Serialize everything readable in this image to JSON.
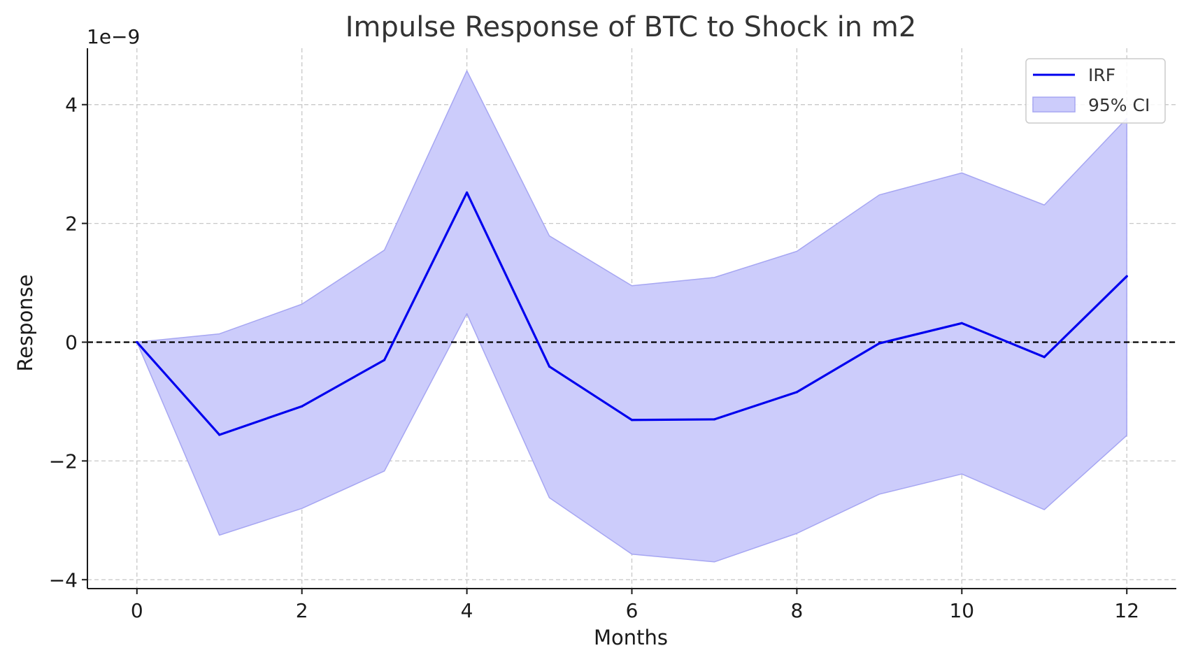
{
  "chart_data": {
    "type": "line",
    "title": "Impulse Response of BTC to Shock in m2",
    "xlabel": "Months",
    "ylabel": "Response",
    "y_offset_label": "1e−9",
    "x": [
      0,
      1,
      2,
      3,
      4,
      5,
      6,
      7,
      8,
      9,
      10,
      11,
      12
    ],
    "series": [
      {
        "name": "IRF",
        "values": [
          0.0,
          -1.56,
          -1.08,
          -0.3,
          2.52,
          -0.41,
          -1.31,
          -1.3,
          -0.84,
          -0.02,
          0.32,
          -0.25,
          1.11
        ],
        "color": "#0000ee"
      }
    ],
    "confidence_band": {
      "name": "95% CI",
      "lower": [
        0.0,
        -3.25,
        -2.8,
        -2.17,
        0.48,
        -2.62,
        -3.57,
        -3.7,
        -3.22,
        -2.56,
        -2.22,
        -2.82,
        -1.57
      ],
      "upper": [
        0.0,
        0.14,
        0.64,
        1.55,
        4.57,
        1.79,
        0.95,
        1.09,
        1.53,
        2.48,
        2.85,
        2.31,
        3.77
      ],
      "fill_color": "#ccccfb",
      "edge_color": "#a6a6f2"
    },
    "reference_line": {
      "y": 0,
      "color": "#000000",
      "style": "dashed"
    },
    "xlim": [
      -0.6,
      12.6
    ],
    "ylim": [
      -4.15,
      4.95
    ],
    "x_ticks": [
      0,
      2,
      4,
      6,
      8,
      10,
      12
    ],
    "x_tick_labels": [
      "0",
      "2",
      "4",
      "6",
      "8",
      "10",
      "12"
    ],
    "y_ticks": [
      -4,
      -2,
      0,
      2,
      4
    ],
    "y_tick_labels": [
      "−4",
      "−2",
      "0",
      "2",
      "4"
    ],
    "grid": true,
    "legend_position": "top-right"
  }
}
